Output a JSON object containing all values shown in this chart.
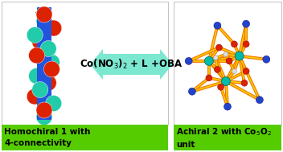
{
  "background_color": "#ffffff",
  "arrow_color": "#7de8d0",
  "arrow_text": "Co(NO$_3$)$_2$ + L +OBA",
  "arrow_text_size": 8.5,
  "left_label_bg": "#55cc00",
  "left_label_text": "Homochiral 1 with\n4-connectivity",
  "right_label_bg": "#55cc00",
  "right_label_text": "Achiral 2 with Co$_5$O$_2$\nunit",
  "label_text_color": "black",
  "label_fontsize": 7.5,
  "label_fontweight": "bold",
  "fig_width": 3.52,
  "fig_height": 1.89,
  "dpi": 100,
  "helix_blue_color": "#2255dd",
  "helix_red_color": "#dd2200",
  "helix_cyan_color": "#22ccaa",
  "network_orange_color": "#ee7700",
  "network_yellow_color": "#ffcc00",
  "network_red_color": "#dd2200",
  "network_blue_color": "#2244cc",
  "network_cyan_color": "#00bbaa",
  "network_white_color": "#dddddd"
}
